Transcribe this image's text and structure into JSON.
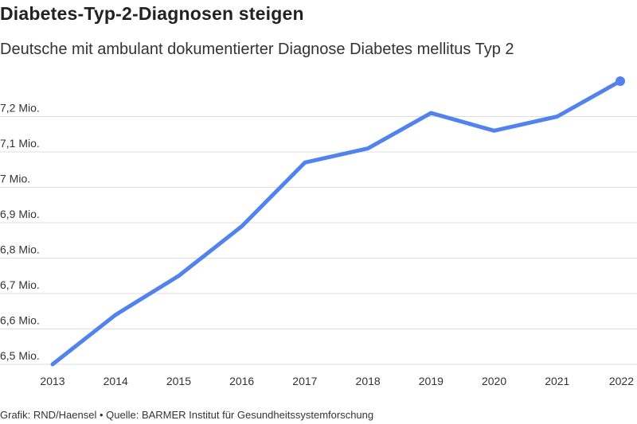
{
  "title": "Diabetes-Typ-2-Diagnosen steigen",
  "subtitle": "Deutsche mit ambulant dokumentierter Diagnose Diabetes mellitus Typ 2",
  "footer": "Grafik: RND/Haensel • Quelle: BARMER Institut für Gesundheitssystemforschung",
  "colors": {
    "line": "#5282ee",
    "grid": "#dddddd",
    "text": "#333333"
  },
  "chart_data": {
    "type": "line",
    "x": [
      "2013",
      "2014",
      "2015",
      "2016",
      "2017",
      "2018",
      "2019",
      "2020",
      "2021",
      "2022"
    ],
    "series": [
      {
        "values": [
          6.5,
          6.64,
          6.75,
          6.89,
          7.07,
          7.11,
          7.21,
          7.16,
          7.2,
          7.3
        ]
      }
    ],
    "y_ticks": [
      {
        "value": 6.5,
        "label": "6,5 Mio."
      },
      {
        "value": 6.6,
        "label": "6,6 Mio."
      },
      {
        "value": 6.7,
        "label": "6,7 Mio."
      },
      {
        "value": 6.8,
        "label": "6,8 Mio."
      },
      {
        "value": 6.9,
        "label": "6,9 Mio."
      },
      {
        "value": 7.0,
        "label": "7 Mio."
      },
      {
        "value": 7.1,
        "label": "7,1 Mio."
      },
      {
        "value": 7.2,
        "label": "7,2 Mio."
      }
    ],
    "ylim": [
      6.5,
      7.3
    ],
    "grid": true,
    "end_marker": true
  }
}
